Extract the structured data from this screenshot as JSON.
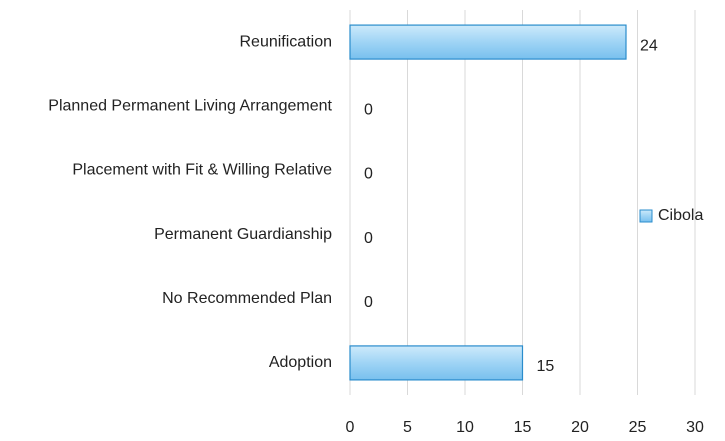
{
  "chart_data": {
    "type": "bar",
    "orientation": "horizontal",
    "categories": [
      "Reunification",
      "Planned Permanent Living Arrangement",
      "Placement with Fit & Willing Relative",
      "Permanent Guardianship",
      "No Recommended Plan",
      "Adoption"
    ],
    "series": [
      {
        "name": "Cibola",
        "color": "#9fd4f5",
        "values": [
          24,
          0,
          0,
          0,
          0,
          15
        ]
      }
    ],
    "xlim": [
      0,
      30
    ],
    "xticks": [
      0,
      5,
      10,
      15,
      20,
      25,
      30
    ],
    "grid": true,
    "legend": "right",
    "data_labels": true
  }
}
